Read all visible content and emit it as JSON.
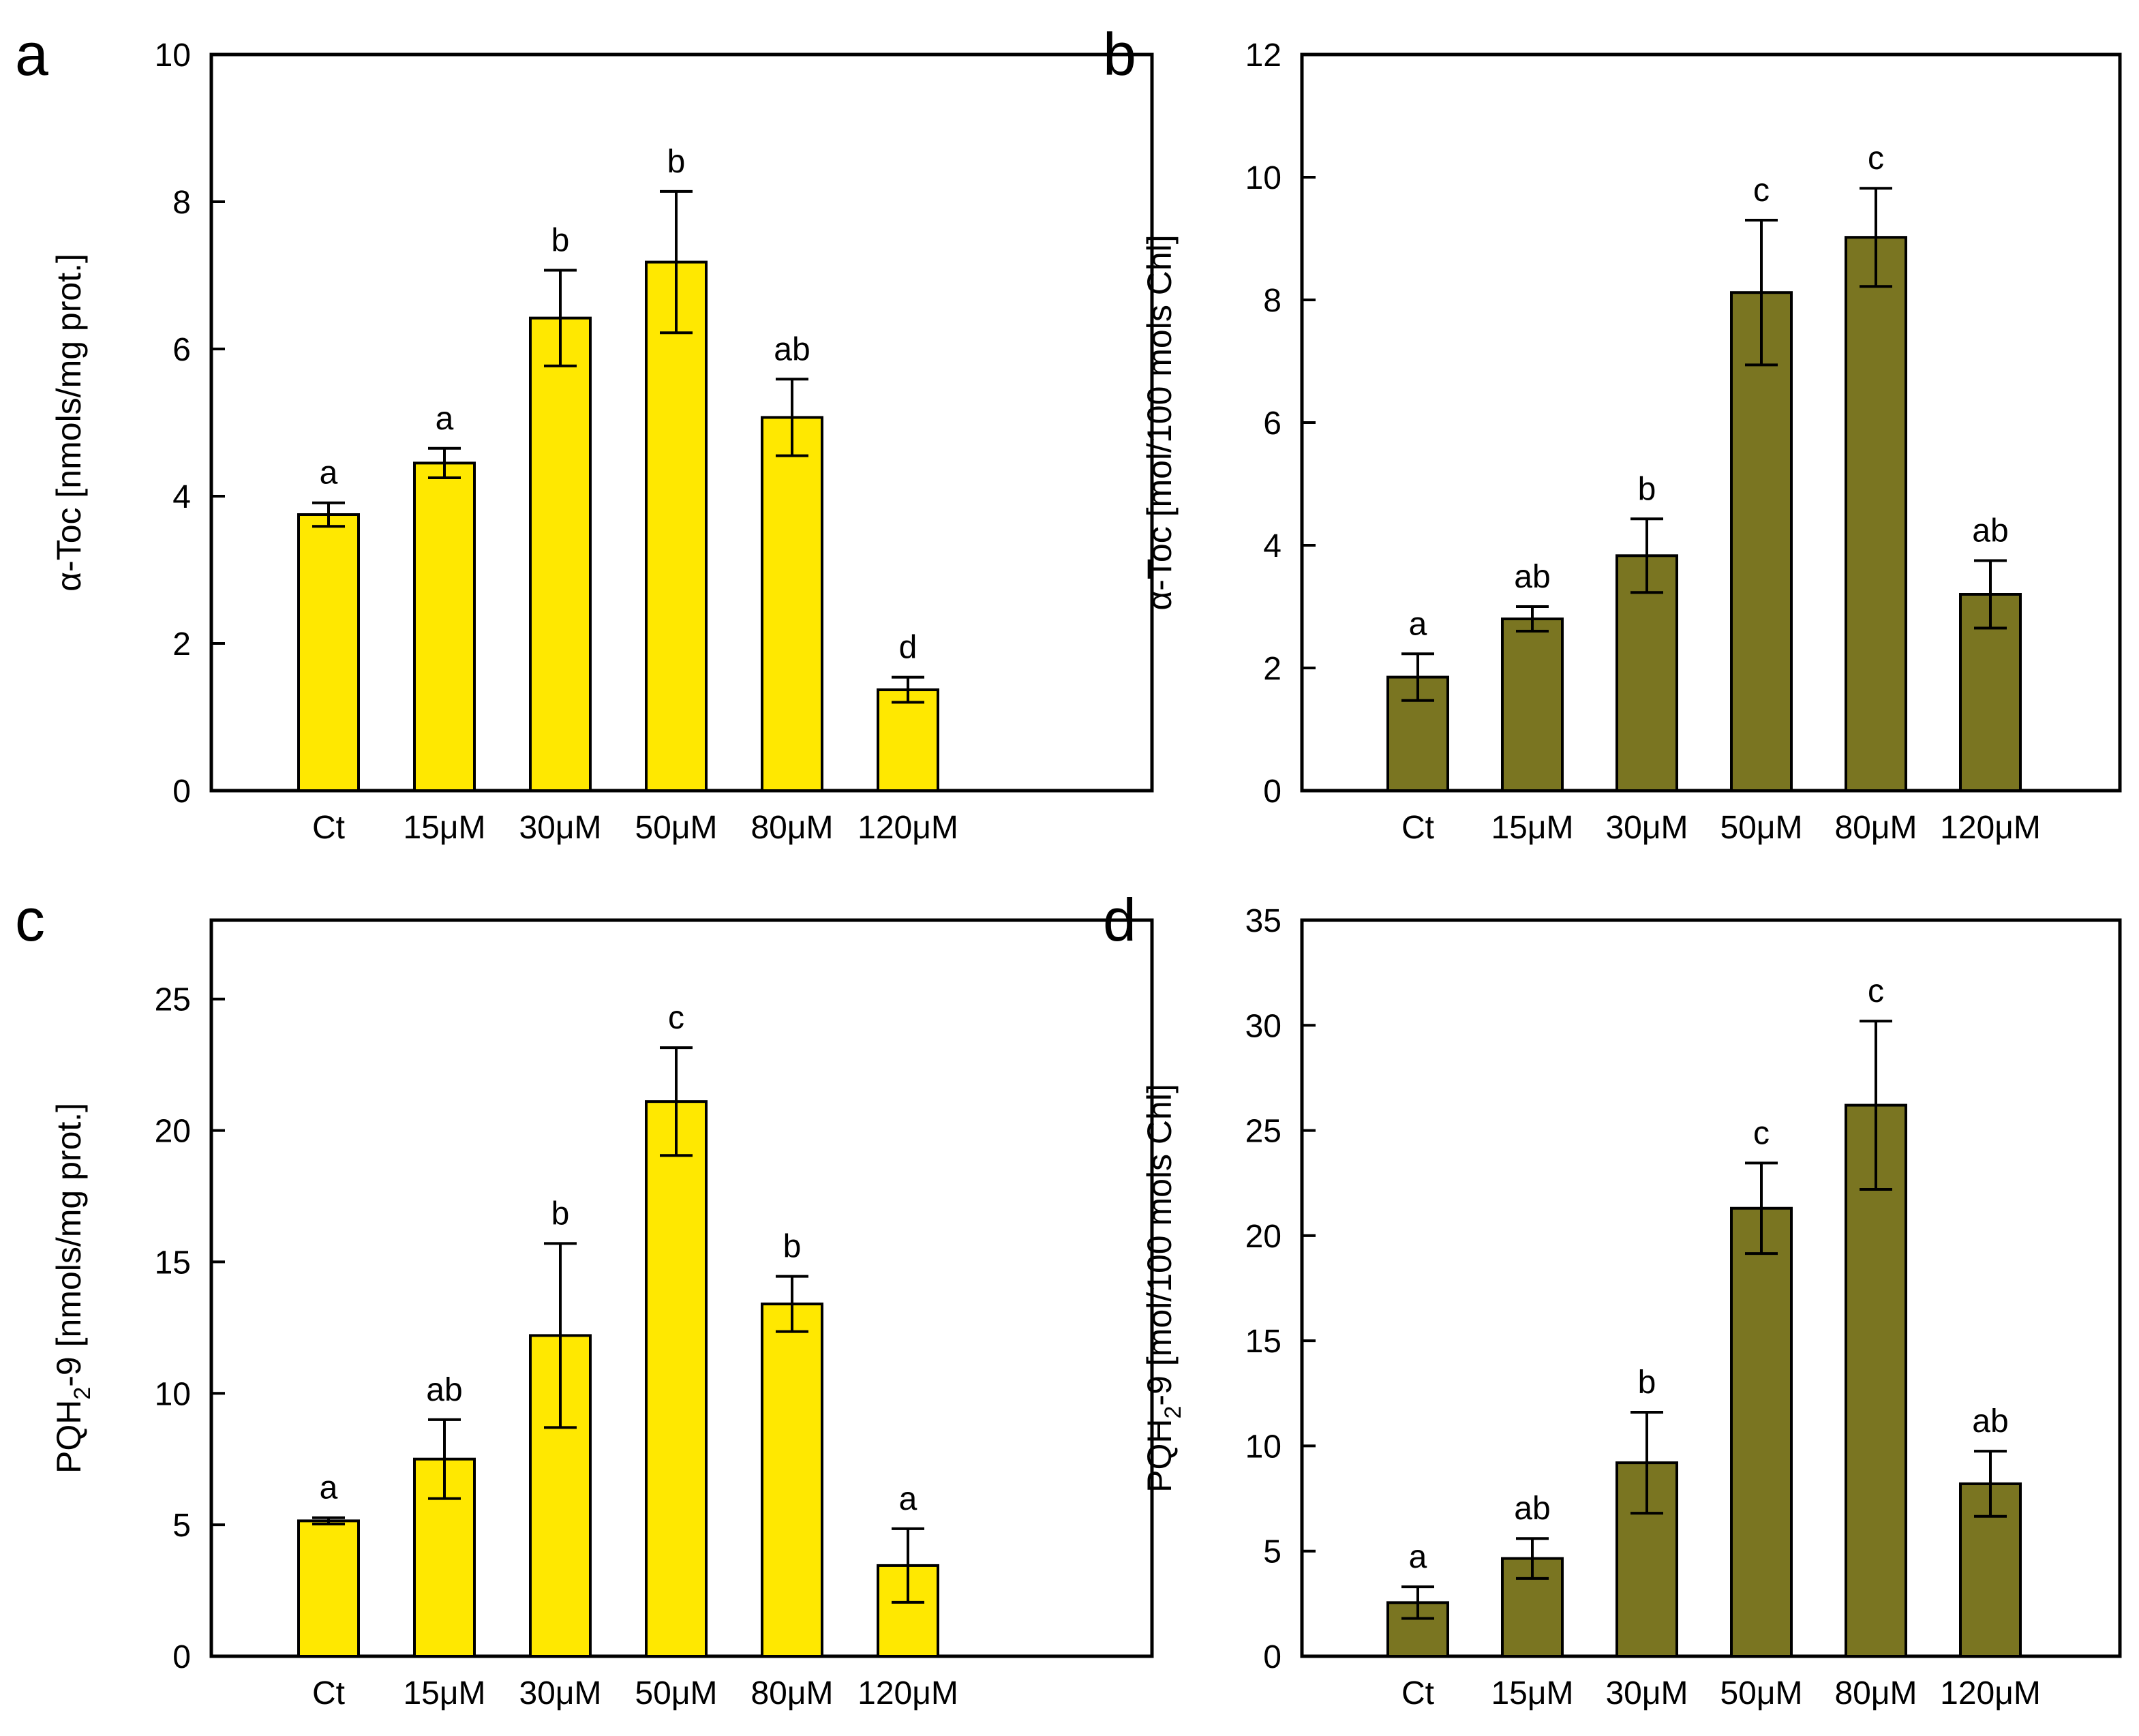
{
  "chart_data": [
    {
      "panel": "a",
      "type": "bar",
      "categories": [
        "Ct",
        "15μM",
        "30μM",
        "50μM",
        "80μM",
        "120μM"
      ],
      "values": [
        3.75,
        4.45,
        6.42,
        7.18,
        5.07,
        1.37
      ],
      "errors": [
        0.16,
        0.2,
        0.65,
        0.96,
        0.52,
        0.17
      ],
      "significance": [
        "a",
        "a",
        "b",
        "b",
        "ab",
        "d"
      ],
      "ylabel": "α-Toc [nmols/mg prot.]",
      "ylabel_main": "",
      "ylabel_sub": "",
      "ylabel_rest": "",
      "xlabel": "",
      "ylim": [
        0,
        10
      ],
      "yticks": [
        0,
        2,
        4,
        6,
        8,
        10
      ],
      "bar_color": "#FFE800",
      "grid": false
    },
    {
      "panel": "b",
      "type": "bar",
      "categories": [
        "Ct",
        "15μM",
        "30μM",
        "50μM",
        "80μM",
        "120μM"
      ],
      "values": [
        1.85,
        2.8,
        3.83,
        8.12,
        9.02,
        3.2
      ],
      "errors": [
        0.38,
        0.2,
        0.6,
        1.18,
        0.8,
        0.55
      ],
      "significance": [
        "a",
        "ab",
        "b",
        "c",
        "c",
        "ab"
      ],
      "ylabel": "α-Toc [mol/100 mols Chl]",
      "ylabel_main": "",
      "ylabel_sub": "",
      "ylabel_rest": "",
      "xlabel": "",
      "ylim": [
        0,
        12
      ],
      "yticks": [
        0,
        2,
        4,
        6,
        8,
        10,
        12
      ],
      "bar_color": "#7A7521",
      "grid": false
    },
    {
      "panel": "c",
      "type": "bar",
      "categories": [
        "Ct",
        "15μM",
        "30μM",
        "50μM",
        "80μM",
        "120μM"
      ],
      "values": [
        5.15,
        7.5,
        12.2,
        21.1,
        13.4,
        3.45
      ],
      "errors": [
        0.12,
        1.5,
        3.5,
        2.05,
        1.05,
        1.4
      ],
      "significance": [
        "a",
        "ab",
        "b",
        "c",
        "b",
        "a"
      ],
      "ylabel": "",
      "ylabel_main": "PQH",
      "ylabel_sub": "2",
      "ylabel_rest": "-9 [nmols/mg prot.]",
      "xlabel": "",
      "ylim": [
        0,
        28
      ],
      "yticks": [
        0,
        5,
        10,
        15,
        20,
        25
      ],
      "bar_color": "#FFE800",
      "grid": false
    },
    {
      "panel": "d",
      "type": "bar",
      "categories": [
        "Ct",
        "15μM",
        "30μM",
        "50μM",
        "80μM",
        "120μM"
      ],
      "values": [
        2.55,
        4.65,
        9.2,
        21.3,
        26.2,
        8.2
      ],
      "errors": [
        0.75,
        0.95,
        2.4,
        2.15,
        4.0,
        1.55
      ],
      "significance": [
        "a",
        "ab",
        "b",
        "c",
        "c",
        "ab"
      ],
      "ylabel": "",
      "ylabel_main": "PQH",
      "ylabel_sub": "2",
      "ylabel_rest": "-9 [mol/100 mols Chl]",
      "xlabel": "",
      "ylim": [
        0,
        35
      ],
      "yticks": [
        0,
        5,
        10,
        15,
        20,
        25,
        30,
        35
      ],
      "bar_color": "#7A7521",
      "grid": false
    }
  ]
}
